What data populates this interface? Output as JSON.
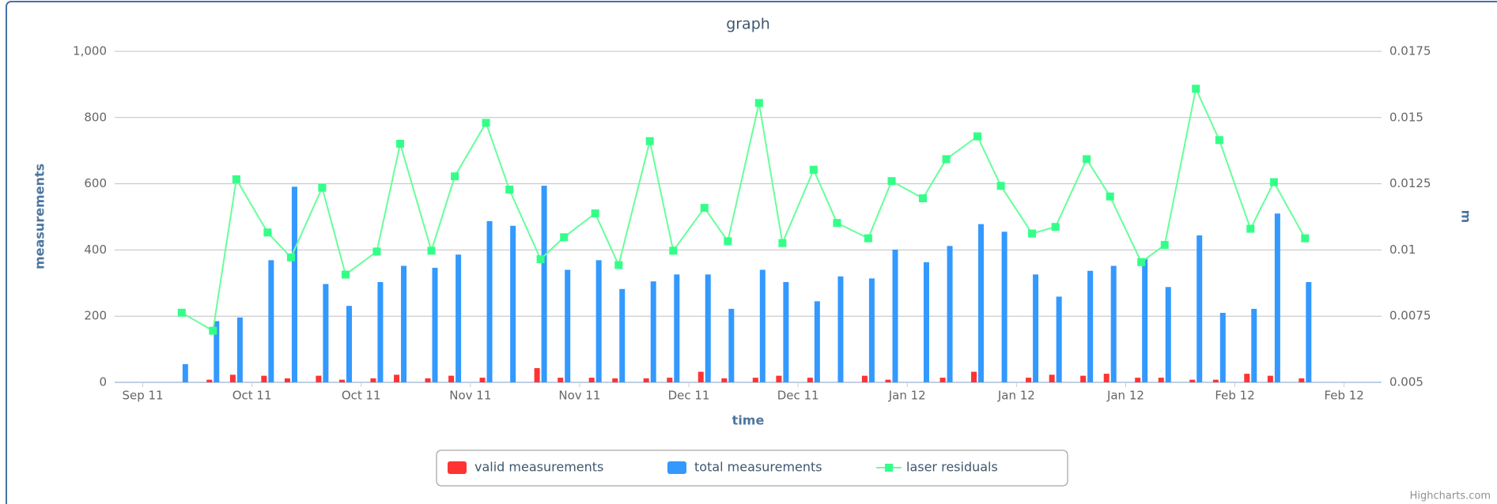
{
  "chart_data": {
    "type": "bar",
    "title": "graph",
    "x_label": "time",
    "y_label": "measurements",
    "y2_label": "m",
    "x": [
      5,
      9,
      12,
      16,
      19,
      23,
      26,
      30,
      33,
      37,
      40,
      44,
      47,
      51,
      54,
      58,
      61,
      65,
      68,
      72,
      75,
      79,
      82,
      86,
      89,
      93,
      96,
      100,
      103,
      107,
      110,
      114,
      117,
      121,
      124,
      128,
      131,
      135,
      138,
      142,
      145,
      149
    ],
    "series": [
      {
        "name": "valid measurements",
        "type": "bar",
        "color": "#ff3333",
        "values": [
          0,
          8,
          23,
          20,
          12,
          20,
          8,
          12,
          23,
          12,
          20,
          14,
          0,
          43,
          14,
          14,
          12,
          12,
          14,
          32,
          12,
          14,
          20,
          14,
          0,
          20,
          8,
          0,
          14,
          32,
          0,
          14,
          23,
          20,
          26,
          14,
          14,
          8,
          8,
          26,
          20,
          12
        ]
      },
      {
        "name": "total measurements",
        "type": "bar",
        "color": "#3399ff",
        "values": [
          55,
          185,
          196,
          369,
          591,
          297,
          231,
          303,
          352,
          346,
          386,
          487,
          473,
          594,
          340,
          369,
          282,
          305,
          326,
          326,
          222,
          340,
          303,
          245,
          320,
          314,
          401,
          363,
          412,
          478,
          455,
          326,
          259,
          337,
          352,
          375,
          288,
          444,
          210,
          222,
          510,
          303
        ]
      },
      {
        "name": "laser residuals",
        "type": "line",
        "axis": "y2",
        "color": "#66ff99",
        "values": [
          0.00763,
          0.00695,
          0.01267,
          0.01066,
          0.00972,
          0.01235,
          0.00907,
          0.00994,
          0.01401,
          0.00997,
          0.01278,
          0.0148,
          0.01228,
          0.00965,
          0.01048,
          0.01138,
          0.00943,
          0.01411,
          0.00997,
          0.01159,
          0.01033,
          0.01555,
          0.01026,
          0.01303,
          0.01102,
          0.01044,
          0.0126,
          0.01195,
          0.01343,
          0.01429,
          0.01242,
          0.01062,
          0.01087,
          0.01343,
          0.01202,
          0.00954,
          0.01019,
          0.01609,
          0.01415,
          0.0108,
          0.01256,
          0.01044
        ]
      }
    ],
    "xlim": [
      -3.6,
      158.8
    ],
    "xticks": [
      {
        "value": 0,
        "label": "Sep 11"
      },
      {
        "value": 14,
        "label": "Oct 11"
      },
      {
        "value": 28,
        "label": "Oct 11"
      },
      {
        "value": 42,
        "label": "Nov 11"
      },
      {
        "value": 56,
        "label": "Nov 11"
      },
      {
        "value": 70,
        "label": "Dec 11"
      },
      {
        "value": 84,
        "label": "Dec 11"
      },
      {
        "value": 98,
        "label": "Jan 12"
      },
      {
        "value": 112,
        "label": "Jan 12"
      },
      {
        "value": 126,
        "label": "Jan 12"
      },
      {
        "value": 140,
        "label": "Feb 12"
      },
      {
        "value": 154,
        "label": "Feb 12"
      }
    ],
    "ylim": [
      0,
      1000
    ],
    "yticks": [
      0,
      200,
      400,
      600,
      800,
      {
        "value": 1000,
        "label": "1,000"
      }
    ],
    "y2lim": [
      0.005,
      0.0175
    ],
    "y2ticks": [
      0.005,
      0.0075,
      0.01,
      0.0125,
      0.015,
      0.0175
    ],
    "grid": true,
    "legend": "bottom",
    "credit": "Highcharts.com"
  }
}
